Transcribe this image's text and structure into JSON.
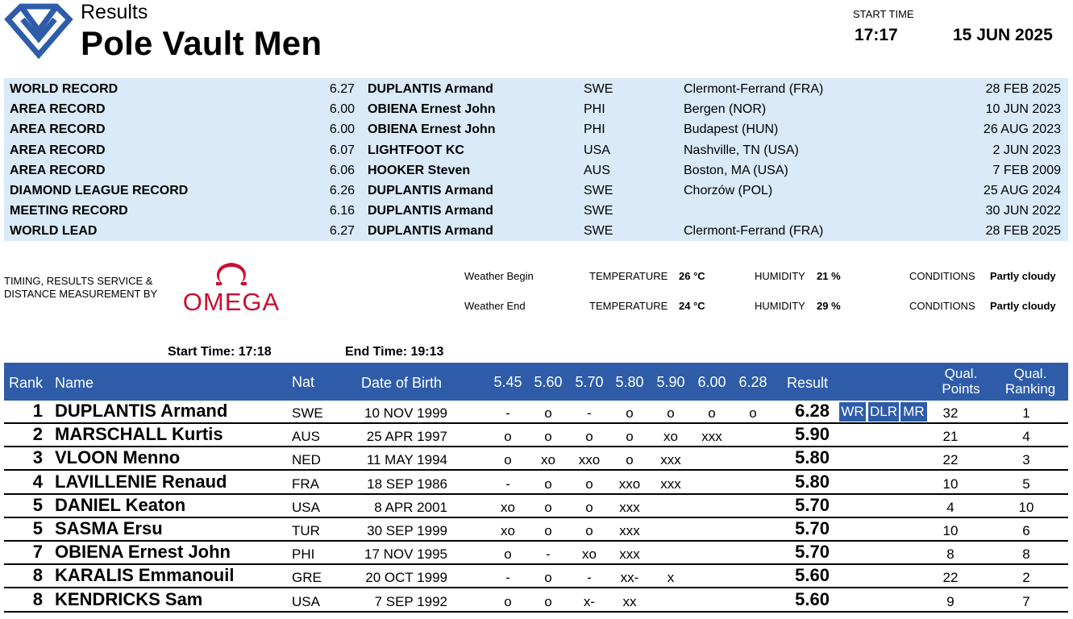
{
  "header": {
    "subtitle": "Results",
    "title": "Pole Vault Men",
    "start_time_label": "START TIME",
    "start_time": "17:17",
    "date": "15 JUN 2025"
  },
  "records": [
    {
      "type": "WORLD RECORD",
      "mark": "6.27",
      "name": "DUPLANTIS Armand",
      "nat": "SWE",
      "venue": "Clermont-Ferrand (FRA)",
      "date": "28 FEB 2025"
    },
    {
      "type": "AREA RECORD",
      "mark": "6.00",
      "name": "OBIENA Ernest John",
      "nat": "PHI",
      "venue": "Bergen (NOR)",
      "date": "10 JUN 2023"
    },
    {
      "type": "AREA RECORD",
      "mark": "6.00",
      "name": "OBIENA Ernest John",
      "nat": "PHI",
      "venue": "Budapest (HUN)",
      "date": "26 AUG 2023"
    },
    {
      "type": "AREA RECORD",
      "mark": "6.07",
      "name": "LIGHTFOOT KC",
      "nat": "USA",
      "venue": "Nashville, TN (USA)",
      "date": "2 JUN 2023"
    },
    {
      "type": "AREA RECORD",
      "mark": "6.06",
      "name": "HOOKER Steven",
      "nat": "AUS",
      "venue": "Boston, MA (USA)",
      "date": "7 FEB 2009"
    },
    {
      "type": "DIAMOND LEAGUE RECORD",
      "mark": "6.26",
      "name": "DUPLANTIS Armand",
      "nat": "SWE",
      "venue": "Chorzów (POL)",
      "date": "25 AUG 2024"
    },
    {
      "type": "MEETING RECORD",
      "mark": "6.16",
      "name": "DUPLANTIS Armand",
      "nat": "SWE",
      "venue": "",
      "date": "30 JUN 2022"
    },
    {
      "type": "WORLD LEAD",
      "mark": "6.27",
      "name": "DUPLANTIS Armand",
      "nat": "SWE",
      "venue": "Clermont-Ferrand (FRA)",
      "date": "28 FEB 2025"
    }
  ],
  "timing": {
    "line1": "TIMING, RESULTS SERVICE &",
    "line2": "DISTANCE MEASUREMENT BY",
    "brand": "OMEGA"
  },
  "weather": {
    "begin": {
      "label": "Weather Begin",
      "temp_label": "TEMPERATURE",
      "temp": "26 °C",
      "hum_label": "HUMIDITY",
      "hum": "21 %",
      "cond_label": "CONDITIONS",
      "cond": "Partly cloudy"
    },
    "end": {
      "label": "Weather End",
      "temp_label": "TEMPERATURE",
      "temp": "24 °C",
      "hum_label": "HUMIDITY",
      "hum": "29 %",
      "cond_label": "CONDITIONS",
      "cond": "Partly cloudy"
    }
  },
  "times": {
    "start_label": "Start Time:",
    "start": "17:18",
    "end_label": "End Time:",
    "end": "19:13"
  },
  "table": {
    "headers": {
      "rank": "Rank",
      "name": "Name",
      "nat": "Nat",
      "dob": "Date of Birth",
      "heights": [
        "5.45",
        "5.60",
        "5.70",
        "5.80",
        "5.90",
        "6.00",
        "6.28"
      ],
      "result": "Result",
      "qual_points_1": "Qual.",
      "qual_points_2": "Points",
      "qual_rank_1": "Qual.",
      "qual_rank_2": "Ranking"
    },
    "rows": [
      {
        "rank": "1",
        "name": "DUPLANTIS Armand",
        "nat": "SWE",
        "dob": "10 NOV 1999",
        "attempts": [
          "-",
          "o",
          "-",
          "o",
          "o",
          "o",
          "o"
        ],
        "result": "6.28",
        "badges": [
          "WR",
          "DLR",
          "MR"
        ],
        "points": "32",
        "qrank": "1"
      },
      {
        "rank": "2",
        "name": "MARSCHALL Kurtis",
        "nat": "AUS",
        "dob": "25 APR 1997",
        "attempts": [
          "o",
          "o",
          "o",
          "o",
          "xo",
          "xxx",
          ""
        ],
        "result": "5.90",
        "badges": [],
        "points": "21",
        "qrank": "4"
      },
      {
        "rank": "3",
        "name": "VLOON Menno",
        "nat": "NED",
        "dob": "11 MAY 1994",
        "attempts": [
          "o",
          "xo",
          "xxo",
          "o",
          "xxx",
          "",
          ""
        ],
        "result": "5.80",
        "badges": [],
        "points": "22",
        "qrank": "3"
      },
      {
        "rank": "4",
        "name": "LAVILLENIE Renaud",
        "nat": "FRA",
        "dob": "18 SEP 1986",
        "attempts": [
          "-",
          "o",
          "o",
          "xxo",
          "xxx",
          "",
          ""
        ],
        "result": "5.80",
        "badges": [],
        "points": "10",
        "qrank": "5"
      },
      {
        "rank": "5",
        "name": "DANIEL Keaton",
        "nat": "USA",
        "dob": "8 APR 2001",
        "attempts": [
          "xo",
          "o",
          "o",
          "xxx",
          "",
          "",
          ""
        ],
        "result": "5.70",
        "badges": [],
        "points": "4",
        "qrank": "10"
      },
      {
        "rank": "5",
        "name": "SASMA Ersu",
        "nat": "TUR",
        "dob": "30 SEP 1999",
        "attempts": [
          "xo",
          "o",
          "o",
          "xxx",
          "",
          "",
          ""
        ],
        "result": "5.70",
        "badges": [],
        "points": "10",
        "qrank": "6"
      },
      {
        "rank": "7",
        "name": "OBIENA Ernest John",
        "nat": "PHI",
        "dob": "17 NOV 1995",
        "attempts": [
          "o",
          "-",
          "xo",
          "xxx",
          "",
          "",
          ""
        ],
        "result": "5.70",
        "badges": [],
        "points": "8",
        "qrank": "8"
      },
      {
        "rank": "8",
        "name": "KARALIS Emmanouil",
        "nat": "GRE",
        "dob": "20 OCT 1999",
        "attempts": [
          "-",
          "o",
          "-",
          "xx-",
          "x",
          "",
          ""
        ],
        "result": "5.60",
        "badges": [],
        "points": "22",
        "qrank": "2"
      },
      {
        "rank": "8",
        "name": "KENDRICKS Sam",
        "nat": "USA",
        "dob": "7 SEP 1992",
        "attempts": [
          "o",
          "o",
          "x-",
          "xx",
          "",
          "",
          ""
        ],
        "result": "5.60",
        "badges": [],
        "points": "9",
        "qrank": "7"
      }
    ]
  },
  "colors": {
    "header_blue": "#2e5ca9",
    "record_bg": "#daeaf8",
    "logo_blue": "#2e5ca9",
    "omega_red": "#c8102e"
  },
  "icons": {
    "logo": "diamond-league-logo-icon",
    "omega": "omega-symbol-icon"
  }
}
